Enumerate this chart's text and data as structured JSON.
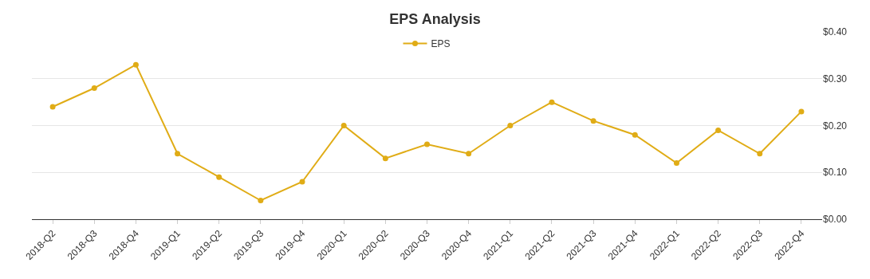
{
  "chart_data": {
    "type": "line",
    "title": "EPS Analysis",
    "categories": [
      "2018-Q2",
      "2018-Q3",
      "2018-Q4",
      "2019-Q1",
      "2019-Q2",
      "2019-Q3",
      "2019-Q4",
      "2020-Q1",
      "2020-Q2",
      "2020-Q3",
      "2020-Q4",
      "2021-Q1",
      "2021-Q2",
      "2021-Q3",
      "2021-Q4",
      "2022-Q1",
      "2022-Q2",
      "2022-Q3",
      "2022-Q4"
    ],
    "series": [
      {
        "name": "EPS",
        "color": "#e0ac16",
        "values": [
          0.24,
          0.28,
          0.33,
          0.14,
          0.09,
          0.04,
          0.08,
          0.2,
          0.13,
          0.16,
          0.14,
          0.2,
          0.25,
          0.21,
          0.18,
          0.12,
          0.19,
          0.14,
          0.23
        ]
      }
    ],
    "ylim": [
      0,
      0.4
    ],
    "yticks": [
      {
        "value": 0,
        "label": "$0.00"
      },
      {
        "value": 0.1,
        "label": "$0.10"
      },
      {
        "value": 0.2,
        "label": "$0.20"
      },
      {
        "value": 0.3,
        "label": "$0.30"
      },
      {
        "value": 0.4,
        "label": "$0.40"
      }
    ],
    "grid": "y",
    "legend": "top",
    "marker": "circle",
    "line_style": "solid"
  }
}
